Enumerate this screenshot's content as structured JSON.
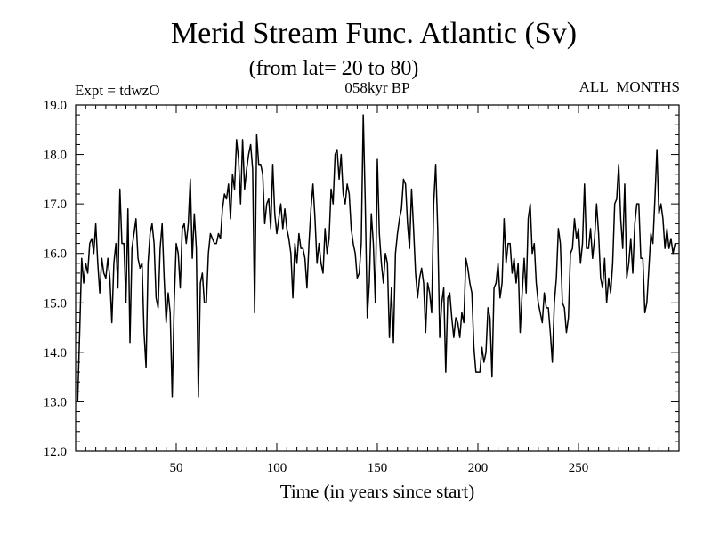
{
  "chart_data": {
    "type": "line",
    "title": "Merid Stream Func. Atlantic (Sv)",
    "subtitle": "(from lat= 20 to 80)",
    "left_label": "Expt = tdwzO",
    "center_label": "058kyr BP",
    "right_label": "ALL_MONTHS",
    "xlabel": "Time (in years since start)",
    "ylabel": "",
    "xlim": [
      0,
      300
    ],
    "ylim": [
      12.0,
      19.0
    ],
    "x_ticks": [
      50,
      100,
      150,
      200,
      250
    ],
    "x_tick_labels": [
      "50",
      "100",
      "150",
      "200",
      "250"
    ],
    "y_ticks": [
      12.0,
      13.0,
      14.0,
      15.0,
      16.0,
      17.0,
      18.0,
      19.0
    ],
    "y_tick_labels": [
      "12.0",
      "13.0",
      "14.0",
      "15.0",
      "16.0",
      "17.0",
      "18.0",
      "19.0"
    ],
    "line_color": "#000000",
    "series": [
      {
        "name": "Merid Stream Func. Atlantic",
        "x_start": 1,
        "x_step": 1,
        "values": [
          13.0,
          14.4,
          15.9,
          15.4,
          15.8,
          15.6,
          16.2,
          16.3,
          16.0,
          16.6,
          15.8,
          15.2,
          15.9,
          15.6,
          15.5,
          15.9,
          15.5,
          14.6,
          15.8,
          16.2,
          15.3,
          17.3,
          16.2,
          16.2,
          15.0,
          16.9,
          14.2,
          16.1,
          16.4,
          16.7,
          15.9,
          15.7,
          15.8,
          14.4,
          13.7,
          15.8,
          16.4,
          16.6,
          16.2,
          15.1,
          14.9,
          16.1,
          16.6,
          15.5,
          14.6,
          15.2,
          14.8,
          13.1,
          15.0,
          16.2,
          16.0,
          15.3,
          16.5,
          16.6,
          16.2,
          16.6,
          17.5,
          15.9,
          16.8,
          16.1,
          13.1,
          15.4,
          15.6,
          15.0,
          15.0,
          16.0,
          16.4,
          16.3,
          16.2,
          16.2,
          16.4,
          16.3,
          16.9,
          17.2,
          17.1,
          17.4,
          16.7,
          17.6,
          17.3,
          18.3,
          17.9,
          17.0,
          18.3,
          17.3,
          17.7,
          18.0,
          18.2,
          17.7,
          14.8,
          18.4,
          17.8,
          17.8,
          17.6,
          16.6,
          17.0,
          17.1,
          16.5,
          17.8,
          16.8,
          16.4,
          16.7,
          17.0,
          16.5,
          16.9,
          16.5,
          16.3,
          16.0,
          15.1,
          16.2,
          15.8,
          16.4,
          16.1,
          16.1,
          15.9,
          15.3,
          16.2,
          16.9,
          17.4,
          16.7,
          15.8,
          16.2,
          15.8,
          15.6,
          16.5,
          16.0,
          16.3,
          17.3,
          17.0,
          18.0,
          18.1,
          17.5,
          18.0,
          17.2,
          17.0,
          17.4,
          17.2,
          16.5,
          16.2,
          16.0,
          15.5,
          15.6,
          16.2,
          18.8,
          17.0,
          14.7,
          15.4,
          16.8,
          16.2,
          15.0,
          17.9,
          16.4,
          15.8,
          15.4,
          16.0,
          15.8,
          14.3,
          15.3,
          14.2,
          16.0,
          16.4,
          16.7,
          16.9,
          17.5,
          17.4,
          16.6,
          16.1,
          17.3,
          16.5,
          15.6,
          15.1,
          15.5,
          15.7,
          15.4,
          14.4,
          15.4,
          15.2,
          14.8,
          17.0,
          17.8,
          16.5,
          14.3,
          15.0,
          15.3,
          13.6,
          15.1,
          15.2,
          14.7,
          14.3,
          14.7,
          14.6,
          14.3,
          14.8,
          14.6,
          15.9,
          15.7,
          15.4,
          15.2,
          14.1,
          13.6,
          13.6,
          13.6,
          14.1,
          13.8,
          14.0,
          14.9,
          14.7,
          13.5,
          15.3,
          15.4,
          15.8,
          15.1,
          15.4,
          16.7,
          15.8,
          16.2,
          16.2,
          15.6,
          15.9,
          15.4,
          15.8,
          14.4,
          15.2,
          15.9,
          15.2,
          16.7,
          17.0,
          16.0,
          16.2,
          15.4,
          15.0,
          14.8,
          14.6,
          15.2,
          14.9,
          14.9,
          14.4,
          13.8,
          15.0,
          15.5,
          16.5,
          16.2,
          15.0,
          14.9,
          14.4,
          14.7,
          16.0,
          16.1,
          16.7,
          16.3,
          16.5,
          15.8,
          16.2,
          17.4,
          16.1,
          16.1,
          16.5,
          15.9,
          16.3,
          17.0,
          16.4,
          15.5,
          15.3,
          15.9,
          15.0,
          15.5,
          15.2,
          15.8,
          17.0,
          17.1,
          17.8,
          16.7,
          16.1,
          17.4,
          15.5,
          15.8,
          16.3,
          15.6,
          16.6,
          17.0,
          17.0,
          15.9,
          15.9,
          14.8,
          15.0,
          15.7,
          16.4,
          16.2,
          17.1,
          18.1,
          16.8,
          17.0,
          16.7,
          16.1,
          16.5,
          16.1,
          16.3,
          16.0,
          16.2
        ]
      }
    ]
  }
}
